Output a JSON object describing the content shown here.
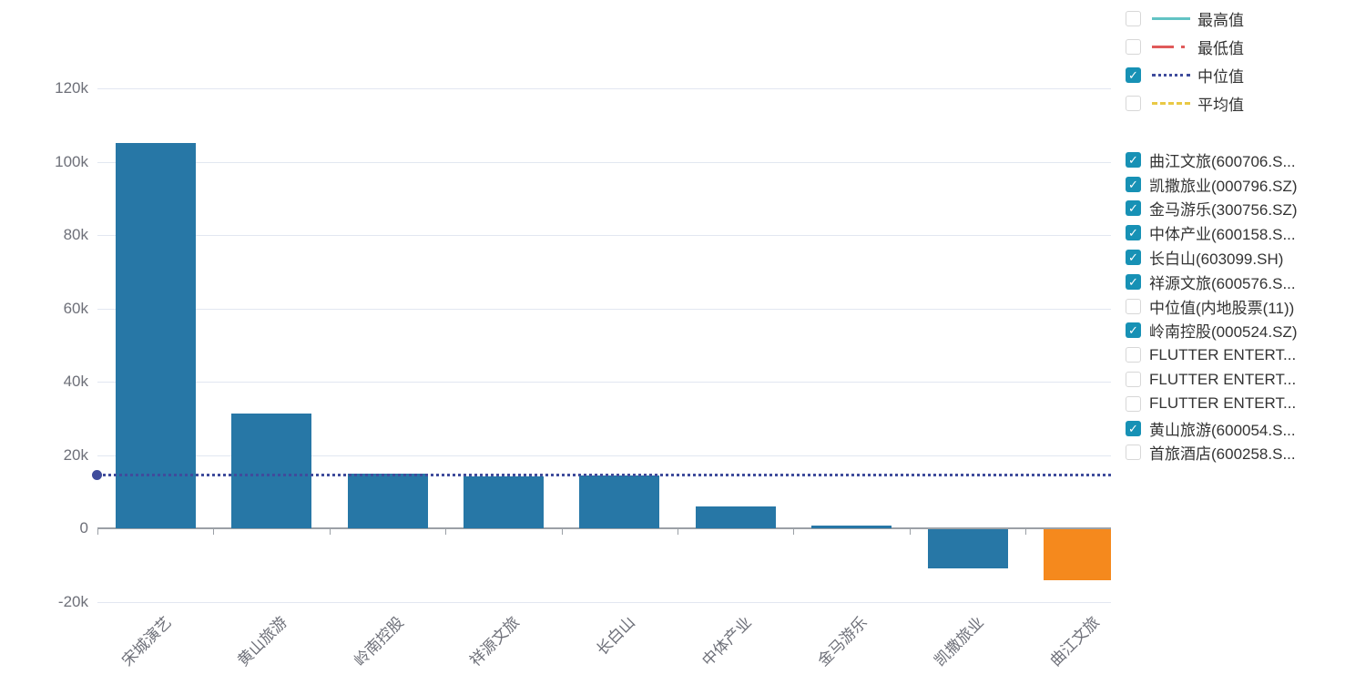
{
  "checkbox_color": "#1791B5",
  "metric_legend": [
    {
      "label": "最高值",
      "checked": false,
      "style": "solid",
      "color": "#62C3C4"
    },
    {
      "label": "最低值",
      "checked": false,
      "style": "dashdot",
      "color": "#E05A5A"
    },
    {
      "label": "中位值",
      "checked": true,
      "style": "dotted",
      "color": "#3F4C9C"
    },
    {
      "label": "平均值",
      "checked": false,
      "style": "dashed",
      "color": "#E9C945"
    }
  ],
  "series_legend": [
    {
      "label": "曲江文旅(600706.S...",
      "checked": true
    },
    {
      "label": "凯撒旅业(000796.SZ)",
      "checked": true
    },
    {
      "label": "金马游乐(300756.SZ)",
      "checked": true
    },
    {
      "label": "中体产业(600158.S...",
      "checked": true
    },
    {
      "label": "长白山(603099.SH)",
      "checked": true
    },
    {
      "label": "祥源文旅(600576.S...",
      "checked": true
    },
    {
      "label": "中位值(内地股票(11))",
      "checked": false
    },
    {
      "label": "岭南控股(000524.SZ)",
      "checked": true
    },
    {
      "label": "FLUTTER ENTERT...",
      "checked": false
    },
    {
      "label": "FLUTTER ENTERT...",
      "checked": false
    },
    {
      "label": "FLUTTER ENTERT...",
      "checked": false
    },
    {
      "label": "黄山旅游(600054.S...",
      "checked": true
    },
    {
      "label": "首旅酒店(600258.S...",
      "checked": false
    }
  ],
  "chart_data": {
    "type": "bar",
    "categories": [
      "宋城演艺",
      "黄山旅游",
      "岭南控股",
      "祥源文旅",
      "长白山",
      "中体产业",
      "金马游乐",
      "凯撒旅业",
      "曲江文旅"
    ],
    "values": [
      105000,
      31400,
      14900,
      14300,
      14500,
      6000,
      800,
      -10600,
      -13800
    ],
    "bar_colors": [
      "#2777A6",
      "#2777A6",
      "#2777A6",
      "#2777A6",
      "#2777A6",
      "#2777A6",
      "#2777A6",
      "#2777A6",
      "#F5891D"
    ],
    "median_line": {
      "label": "中位值",
      "value": 14700,
      "color": "#3F4C9C"
    },
    "ylim": [
      -20000,
      120000
    ],
    "yticks": [
      120000,
      100000,
      80000,
      60000,
      40000,
      20000,
      0,
      -20000
    ],
    "ytick_labels": [
      "120k",
      "100k",
      "80k",
      "60k",
      "40k",
      "20k",
      "0",
      "-20k"
    ],
    "xlabel": "",
    "ylabel": "",
    "grid": true,
    "legend_position": "right"
  }
}
